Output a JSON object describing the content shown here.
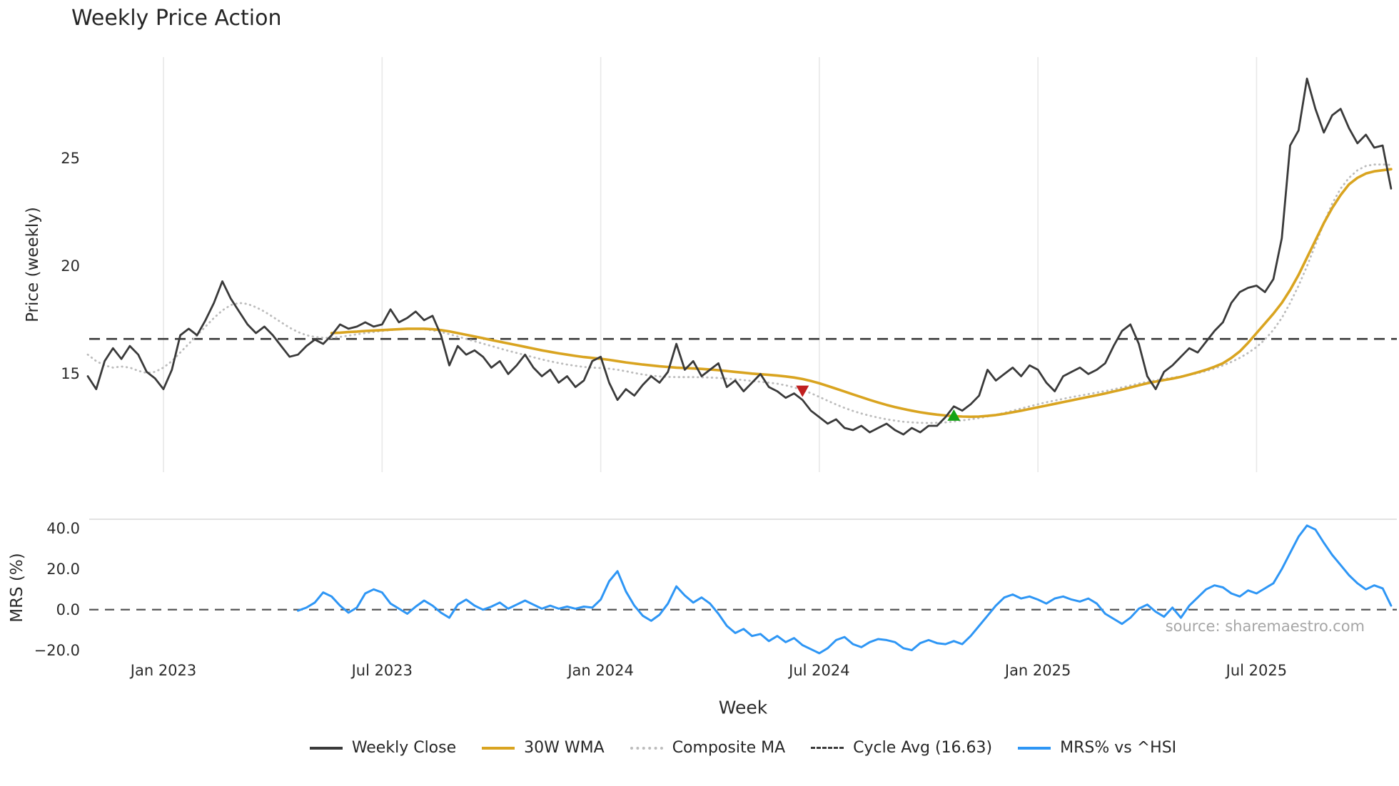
{
  "title": "Weekly Price Action",
  "source": "source: sharemaestro.com",
  "colors": {
    "close": "#3a3a3a",
    "wma": "#d9a420",
    "composite": "#bcbcbc",
    "cycle": "#3a3a3a",
    "mrs": "#2e96f5",
    "sell": "#c01f1f",
    "buy": "#14a314",
    "grid": "#e8e8e8",
    "spine": "#d8d8d8",
    "zero": "#555555"
  },
  "chart_data": {
    "type": "line",
    "x_unit": "week_index",
    "total_weeks": 156,
    "xlabel": "Week",
    "xticks": [
      {
        "index": 9,
        "label": "Jan 2023"
      },
      {
        "index": 35,
        "label": "Jul 2023"
      },
      {
        "index": 61,
        "label": "Jan 2024"
      },
      {
        "index": 87,
        "label": "Jul 2024"
      },
      {
        "index": 113,
        "label": "Jan 2025"
      },
      {
        "index": 139,
        "label": "Jul 2025"
      }
    ],
    "panels": [
      {
        "name": "price",
        "ylabel": "Price (weekly)",
        "ylim": [
          10.45,
          29.7
        ],
        "grid": "vertical-only",
        "yticks": [
          {
            "value": 15,
            "label": "15"
          },
          {
            "value": 20,
            "label": "20"
          },
          {
            "value": 25,
            "label": "25"
          }
        ],
        "hline": {
          "value": 16.63,
          "label": "Cycle Avg (16.63)",
          "style": "dashed"
        },
        "series": [
          {
            "key": "composite_ma",
            "name": "Composite MA",
            "color_key": "composite",
            "style": "dotted",
            "start_index": 0,
            "values": [
              15.9,
              15.6,
              15.4,
              15.3,
              15.35,
              15.3,
              15.15,
              15.05,
              15.1,
              15.3,
              15.6,
              16.0,
              16.4,
              16.8,
              17.2,
              17.6,
              17.95,
              18.2,
              18.3,
              18.25,
              18.1,
              17.9,
              17.65,
              17.4,
              17.15,
              16.95,
              16.8,
              16.72,
              16.68,
              16.68,
              16.72,
              16.78,
              16.84,
              16.9,
              16.95,
              17.0,
              17.04,
              17.07,
              17.09,
              17.1,
              17.08,
              17.03,
              16.95,
              16.85,
              16.74,
              16.63,
              16.52,
              16.41,
              16.3,
              16.19,
              16.08,
              15.98,
              15.88,
              15.78,
              15.68,
              15.59,
              15.51,
              15.44,
              15.38,
              15.33,
              15.3,
              15.28,
              15.25,
              15.2,
              15.13,
              15.05,
              14.98,
              14.93,
              14.89,
              14.87,
              14.86,
              14.86,
              14.86,
              14.85,
              14.84,
              14.82,
              14.79,
              14.76,
              14.72,
              14.68,
              14.64,
              14.6,
              14.55,
              14.48,
              14.38,
              14.26,
              14.11,
              13.94,
              13.76,
              13.59,
              13.43,
              13.29,
              13.17,
              13.07,
              12.98,
              12.9,
              12.84,
              12.79,
              12.76,
              12.74,
              12.73,
              12.74,
              12.76,
              12.8,
              12.85,
              12.9,
              12.96,
              13.03,
              13.11,
              13.2,
              13.3,
              13.4,
              13.5,
              13.6,
              13.69,
              13.77,
              13.85,
              13.93,
              14.0,
              14.07,
              14.14,
              14.21,
              14.29,
              14.38,
              14.47,
              14.56,
              14.64,
              14.71,
              14.77,
              14.83,
              14.89,
              14.96,
              15.04,
              15.14,
              15.26,
              15.4,
              15.56,
              15.75,
              15.98,
              16.25,
              16.6,
              17.05,
              17.6,
              18.3,
              19.1,
              20.0,
              21.0,
              22.0,
              22.9,
              23.6,
              24.1,
              24.45,
              24.65,
              24.72,
              24.72,
              24.7
            ]
          },
          {
            "key": "wma_30w",
            "name": "30W WMA",
            "color_key": "wma",
            "style": "solid",
            "start_index": 29,
            "values": [
              16.9,
              16.92,
              16.95,
              16.97,
              17.0,
              17.02,
              17.04,
              17.06,
              17.08,
              17.1,
              17.1,
              17.1,
              17.08,
              17.04,
              16.98,
              16.9,
              16.82,
              16.74,
              16.66,
              16.58,
              16.5,
              16.42,
              16.34,
              16.26,
              16.18,
              16.1,
              16.03,
              15.96,
              15.9,
              15.84,
              15.79,
              15.75,
              15.71,
              15.66,
              15.6,
              15.54,
              15.49,
              15.44,
              15.4,
              15.36,
              15.33,
              15.3,
              15.28,
              15.26,
              15.24,
              15.21,
              15.18,
              15.14,
              15.1,
              15.06,
              15.02,
              14.99,
              14.96,
              14.93,
              14.89,
              14.84,
              14.77,
              14.68,
              14.57,
              14.45,
              14.32,
              14.19,
              14.06,
              13.93,
              13.8,
              13.68,
              13.57,
              13.47,
              13.38,
              13.3,
              13.23,
              13.17,
              13.12,
              13.08,
              13.05,
              13.03,
              13.02,
              13.03,
              13.06,
              13.1,
              13.16,
              13.23,
              13.3,
              13.38,
              13.46,
              13.54,
              13.62,
              13.7,
              13.78,
              13.86,
              13.94,
              14.02,
              14.1,
              14.19,
              14.28,
              14.38,
              14.48,
              14.57,
              14.65,
              14.72,
              14.79,
              14.87,
              14.97,
              15.08,
              15.2,
              15.34,
              15.5,
              15.75,
              16.05,
              16.45,
              16.9,
              17.35,
              17.8,
              18.3,
              18.9,
              19.6,
              20.4,
              21.2,
              22.0,
              22.7,
              23.3,
              23.8,
              24.1,
              24.3,
              24.4,
              24.45,
              24.5
            ]
          },
          {
            "key": "weekly_close",
            "name": "Weekly Close",
            "color_key": "close",
            "style": "solid",
            "start_index": 0,
            "values": [
              14.9,
              14.3,
              15.6,
              16.2,
              15.7,
              16.3,
              15.9,
              15.1,
              14.8,
              14.3,
              15.2,
              16.8,
              17.1,
              16.8,
              17.5,
              18.3,
              19.3,
              18.5,
              17.9,
              17.3,
              16.9,
              17.2,
              16.8,
              16.3,
              15.8,
              15.9,
              16.3,
              16.6,
              16.4,
              16.8,
              17.3,
              17.1,
              17.2,
              17.4,
              17.2,
              17.3,
              18.0,
              17.4,
              17.6,
              17.9,
              17.5,
              17.7,
              16.8,
              15.4,
              16.3,
              15.9,
              16.1,
              15.8,
              15.3,
              15.6,
              15.0,
              15.4,
              15.9,
              15.3,
              14.9,
              15.2,
              14.6,
              14.9,
              14.4,
              14.7,
              15.6,
              15.8,
              14.6,
              13.8,
              14.3,
              14.0,
              14.5,
              14.9,
              14.6,
              15.1,
              16.4,
              15.2,
              15.6,
              14.9,
              15.2,
              15.5,
              14.4,
              14.7,
              14.2,
              14.6,
              15.0,
              14.4,
              14.2,
              13.9,
              14.1,
              13.8,
              13.3,
              13.0,
              12.7,
              12.9,
              12.5,
              12.4,
              12.6,
              12.3,
              12.5,
              12.7,
              12.4,
              12.2,
              12.5,
              12.3,
              12.6,
              12.6,
              13.0,
              13.5,
              13.3,
              13.6,
              14.0,
              15.2,
              14.7,
              15.0,
              15.3,
              14.9,
              15.4,
              15.2,
              14.6,
              14.2,
              14.9,
              15.1,
              15.3,
              15.0,
              15.2,
              15.5,
              16.3,
              17.0,
              17.3,
              16.4,
              14.9,
              14.3,
              15.1,
              15.4,
              15.8,
              16.2,
              16.0,
              16.5,
              17.0,
              17.4,
              18.3,
              18.8,
              19.0,
              19.1,
              18.8,
              19.4,
              21.3,
              25.6,
              26.3,
              28.7,
              27.3,
              26.2,
              27.0,
              27.3,
              26.4,
              25.7,
              26.1,
              25.5,
              25.6,
              23.6
            ]
          }
        ],
        "markers": [
          {
            "type": "sell",
            "shape": "triangle-down",
            "index": 85,
            "value": 14.2,
            "color_key": "sell"
          },
          {
            "type": "buy",
            "shape": "triangle-up",
            "index": 103,
            "value": 13.1,
            "color_key": "buy"
          }
        ]
      },
      {
        "name": "mrs",
        "ylabel": "MRS (%)",
        "ylim": [
          -23.3,
          44.6
        ],
        "yticks": [
          {
            "value": -20,
            "label": "−20.0"
          },
          {
            "value": 0,
            "label": "0.0"
          },
          {
            "value": 20,
            "label": "20.0"
          },
          {
            "value": 40,
            "label": "40.0"
          }
        ],
        "hline": {
          "value": 0,
          "style": "dashed"
        },
        "series": [
          {
            "key": "mrs_line",
            "name": "MRS% vs ^HSI",
            "color_key": "mrs",
            "style": "solid",
            "start_index": 25,
            "values": [
              -0.5,
              1.0,
              3.5,
              8.5,
              6.5,
              2.0,
              -1.5,
              1.0,
              8.0,
              10.0,
              8.5,
              3.0,
              0.5,
              -2.0,
              1.5,
              4.5,
              2.0,
              -1.5,
              -4.0,
              2.5,
              5.0,
              2.0,
              0.0,
              1.5,
              3.5,
              0.5,
              2.5,
              4.5,
              2.5,
              0.5,
              2.0,
              0.5,
              1.5,
              0.5,
              1.5,
              1.0,
              5.0,
              14.0,
              19.0,
              9.0,
              2.0,
              -3.0,
              -5.5,
              -2.5,
              3.0,
              11.5,
              7.0,
              3.5,
              6.0,
              3.0,
              -2.0,
              -8.0,
              -11.5,
              -9.5,
              -13.0,
              -12.0,
              -15.5,
              -13.0,
              -16.0,
              -14.0,
              -17.5,
              -19.5,
              -21.5,
              -19.0,
              -15.0,
              -13.5,
              -17.0,
              -18.5,
              -16.0,
              -14.5,
              -15.0,
              -16.0,
              -19.0,
              -20.0,
              -16.5,
              -15.0,
              -16.5,
              -17.0,
              -15.5,
              -17.0,
              -13.0,
              -8.0,
              -3.0,
              2.0,
              6.0,
              7.5,
              5.5,
              6.5,
              5.0,
              3.0,
              5.5,
              6.5,
              5.0,
              4.0,
              5.5,
              3.0,
              -2.0,
              -4.5,
              -7.0,
              -4.0,
              0.5,
              2.5,
              -1.0,
              -3.5,
              1.0,
              -4.0,
              2.0,
              6.0,
              10.0,
              12.0,
              11.0,
              8.0,
              6.5,
              9.5,
              8.0,
              10.5,
              13.0,
              20.0,
              28.0,
              36.0,
              41.5,
              39.5,
              33.0,
              27.0,
              22.0,
              17.0,
              13.0,
              10.0,
              12.0,
              10.5,
              2.0
            ]
          }
        ]
      }
    ],
    "legend": [
      {
        "label": "Weekly Close",
        "swatch": "solid",
        "color_key": "close"
      },
      {
        "label": "30W WMA",
        "swatch": "solid",
        "color_key": "wma"
      },
      {
        "label": "Composite MA",
        "swatch": "dotted",
        "color_key": "composite"
      },
      {
        "label": "Cycle Avg (16.63)",
        "swatch": "dashed",
        "color_key": "cycle"
      },
      {
        "label": "MRS% vs ^HSI",
        "swatch": "solid",
        "color_key": "mrs"
      }
    ]
  }
}
